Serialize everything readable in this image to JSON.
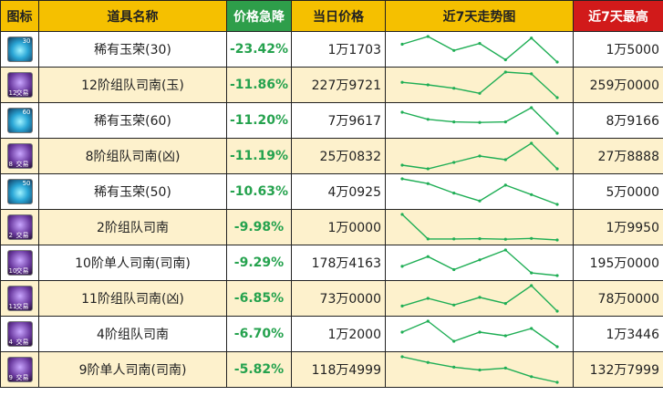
{
  "headers": {
    "icon": "图标",
    "name": "道具名称",
    "drop": "价格急降",
    "price": "当日价格",
    "trend": "近7天走势图",
    "max": "近7天最高"
  },
  "rows": [
    {
      "icon": "gem-icon",
      "icon_level": "30",
      "name": "稀有玉荣(30)",
      "drop": "-23.42%",
      "price": "1万1703",
      "max": "1万5000",
      "trend": [
        14000,
        15000,
        13200,
        14100,
        12000,
        14800,
        11700
      ]
    },
    {
      "icon": "card-icon",
      "icon_level": "12",
      "icon_tag": "交易",
      "name": "12阶组队司南(玉)",
      "drop": "-11.86%",
      "price": "227万9721",
      "max": "259万0000",
      "trend": [
        246,
        243,
        239,
        233,
        258,
        256,
        228
      ]
    },
    {
      "icon": "gem-icon",
      "icon_level": "60",
      "name": "稀有玉荣(60)",
      "drop": "-11.20%",
      "price": "7万9617",
      "max": "8万9166",
      "trend": [
        87,
        84.5,
        83.6,
        83.4,
        83.6,
        88.6,
        79.6
      ]
    },
    {
      "icon": "card-icon",
      "icon_level": "8",
      "icon_tag": "交易",
      "name": "8阶组队司南(凶)",
      "drop": "-11.19%",
      "price": "25万0832",
      "max": "27万8888",
      "trend": [
        25.5,
        25.1,
        25.8,
        26.5,
        26.1,
        27.9,
        25.1
      ]
    },
    {
      "icon": "gem-icon",
      "icon_level": "50",
      "name": "稀有玉荣(50)",
      "drop": "-10.63%",
      "price": "4万0925",
      "max": "5万0000",
      "trend": [
        49,
        47.5,
        44.5,
        42,
        47,
        44,
        40.9
      ]
    },
    {
      "icon": "card-icon",
      "icon_level": "2",
      "icon_tag": "交易",
      "name": "2阶组队司南",
      "drop": "-9.98%",
      "price": "1万0000",
      "max": "1万9950",
      "trend": [
        19900,
        10400,
        10400,
        10500,
        10300,
        10600,
        10000
      ]
    },
    {
      "icon": "card-icon",
      "icon_level": "10",
      "icon_tag": "交易",
      "name": "10阶单人司南(司南)",
      "drop": "-9.29%",
      "price": "178万4163",
      "max": "195万0000",
      "trend": [
        184,
        190,
        182,
        188,
        194,
        180,
        178.4
      ]
    },
    {
      "icon": "card-icon",
      "icon_level": "11",
      "icon_tag": "交易",
      "name": "11阶组队司南(凶)",
      "drop": "-6.85%",
      "price": "73万0000",
      "max": "78万0000",
      "trend": [
        74,
        75.5,
        74.2,
        75.7,
        74.5,
        78,
        73
      ]
    },
    {
      "icon": "card-icon",
      "icon_level": "4",
      "icon_tag": "交易",
      "name": "4阶组队司南",
      "drop": "-6.70%",
      "price": "1万2000",
      "max": "1万3446",
      "trend": [
        12800,
        13400,
        12300,
        12800,
        12600,
        13000,
        12000
      ]
    },
    {
      "icon": "card-icon",
      "icon_level": "9",
      "icon_tag": "交易",
      "name": "9阶单人司南(司南)",
      "drop": "-5.82%",
      "price": "118万4999",
      "max": "132万7999",
      "trend": [
        132,
        129,
        126.5,
        125,
        126,
        121.5,
        118.5
      ]
    }
  ]
}
